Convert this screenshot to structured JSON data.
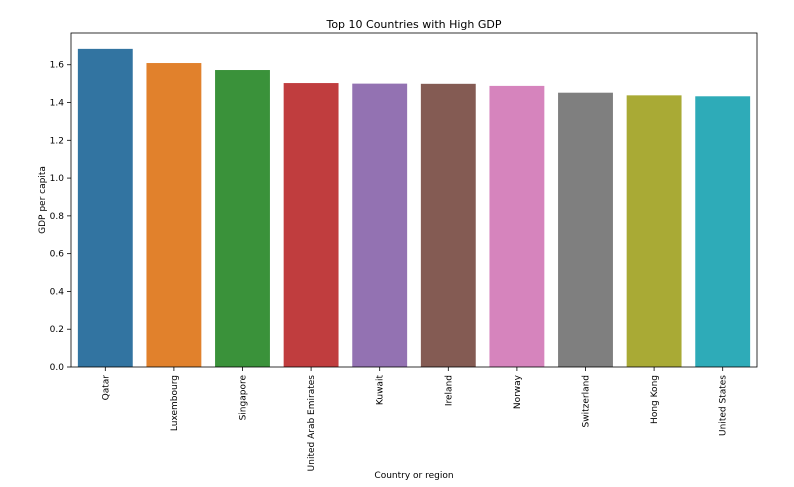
{
  "chart_data": {
    "type": "bar",
    "title": "Top 10 Countries with High GDP",
    "xlabel": "Country or region",
    "ylabel": "GDP per capita",
    "categories": [
      "Qatar",
      "Luxembourg",
      "Singapore",
      "United Arab Emirates",
      "Kuwait",
      "Ireland",
      "Norway",
      "Switzerland",
      "Hong Kong",
      "United States"
    ],
    "values": [
      1.684,
      1.609,
      1.572,
      1.503,
      1.5,
      1.499,
      1.488,
      1.452,
      1.438,
      1.433
    ],
    "ylim": [
      0,
      1.768
    ],
    "yticks": [
      "0.0",
      "0.2",
      "0.4",
      "0.6",
      "0.8",
      "1.0",
      "1.2",
      "1.4",
      "1.6"
    ],
    "colors": [
      "#3274a1",
      "#e1812c",
      "#3a923a",
      "#c03d3e",
      "#9372b2",
      "#845b53",
      "#d684bd",
      "#7f7f7f",
      "#a9aa35",
      "#2eabb8"
    ],
    "grid": false,
    "legend": "none"
  }
}
